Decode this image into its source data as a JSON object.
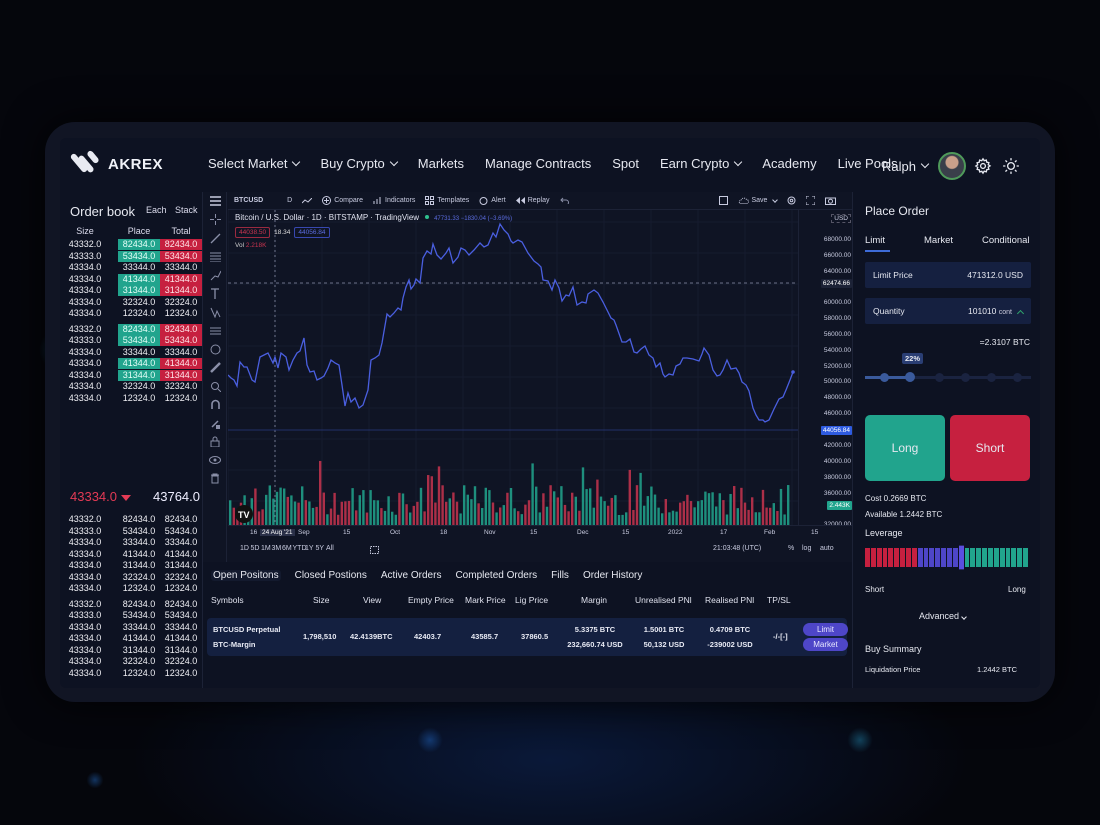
{
  "brand": {
    "name": "AKREX"
  },
  "nav": {
    "items": [
      {
        "label": "Select Market",
        "dropdown": true
      },
      {
        "label": "Buy Crypto",
        "dropdown": true
      },
      {
        "label": "Markets",
        "dropdown": false
      },
      {
        "label": "Manage Contracts",
        "dropdown": false
      },
      {
        "label": "Spot",
        "dropdown": false
      },
      {
        "label": "Earn Crypto",
        "dropdown": true
      },
      {
        "label": "Academy",
        "dropdown": false
      },
      {
        "label": "Live Pools",
        "dropdown": false
      }
    ],
    "user": {
      "name": "Ralph"
    },
    "icons": [
      "settings-icon",
      "theme-sun-icon"
    ]
  },
  "order_book": {
    "title": "Order book",
    "tabs": [
      "Each",
      "Stack"
    ],
    "columns": [
      "Size",
      "Place",
      "Total"
    ],
    "asks": [
      {
        "size": "43332.0",
        "place": "82434.0",
        "total": "82434.0",
        "hl": true
      },
      {
        "size": "43333.0",
        "place": "53434.0",
        "total": "53434.0",
        "hl": true
      },
      {
        "size": "43334.0",
        "place": "33344.0",
        "total": "33344.0",
        "hl": false
      },
      {
        "size": "43334.0",
        "place": "41344.0",
        "total": "41344.0",
        "hl": true
      },
      {
        "size": "43334.0",
        "place": "31344.0",
        "total": "31344.0",
        "hl": true
      },
      {
        "size": "43334.0",
        "place": "32324.0",
        "total": "32324.0",
        "hl": false
      },
      {
        "size": "43334.0",
        "place": "12324.0",
        "total": "12324.0",
        "hl": false
      },
      {
        "size": "43332.0",
        "place": "82434.0",
        "total": "82434.0",
        "hl": true
      },
      {
        "size": "43333.0",
        "place": "53434.0",
        "total": "53434.0",
        "hl": true
      },
      {
        "size": "43334.0",
        "place": "33344.0",
        "total": "33344.0",
        "hl": false
      },
      {
        "size": "43334.0",
        "place": "41344.0",
        "total": "41344.0",
        "hl": true
      },
      {
        "size": "43334.0",
        "place": "31344.0",
        "total": "31344.0",
        "hl": true
      },
      {
        "size": "43334.0",
        "place": "32324.0",
        "total": "32324.0",
        "hl": false
      },
      {
        "size": "43334.0",
        "place": "12324.0",
        "total": "12324.0",
        "hl": false
      }
    ],
    "last_price": "43334.0",
    "mark_price": "43764.0",
    "bids": [
      {
        "size": "43332.0",
        "place": "82434.0",
        "total": "82434.0"
      },
      {
        "size": "43333.0",
        "place": "53434.0",
        "total": "53434.0"
      },
      {
        "size": "43334.0",
        "place": "33344.0",
        "total": "33344.0"
      },
      {
        "size": "43334.0",
        "place": "41344.0",
        "total": "41344.0"
      },
      {
        "size": "43334.0",
        "place": "31344.0",
        "total": "31344.0"
      },
      {
        "size": "43334.0",
        "place": "32324.0",
        "total": "32324.0"
      },
      {
        "size": "43334.0",
        "place": "12324.0",
        "total": "12324.0"
      },
      {
        "size": "43332.0",
        "place": "82434.0",
        "total": "82434.0"
      },
      {
        "size": "43333.0",
        "place": "53434.0",
        "total": "53434.0"
      },
      {
        "size": "43334.0",
        "place": "33344.0",
        "total": "33344.0"
      },
      {
        "size": "43334.0",
        "place": "41344.0",
        "total": "41344.0"
      },
      {
        "size": "43334.0",
        "place": "31344.0",
        "total": "31344.0"
      },
      {
        "size": "43334.0",
        "place": "32324.0",
        "total": "32324.0"
      },
      {
        "size": "43334.0",
        "place": "12324.0",
        "total": "12324.0"
      }
    ]
  },
  "chart": {
    "toolbar": {
      "symbol": "BTCUSD",
      "interval": "D",
      "compare": "Compare",
      "indicators": "Indicators",
      "templates": "Templates",
      "alert": "Alert",
      "replay": "Replay",
      "save": "Save"
    },
    "legend": {
      "title": "Bitcoin / U.S. Dollar · 1D · BITSTAMP · TradingView",
      "quote": "47731.33  −1830.04 (−3.69%)",
      "bid": "44038.50",
      "spread": "18.34",
      "ask": "44056.84",
      "vol_label": "Vol",
      "vol_value": "2.218K"
    },
    "currency": "USD",
    "crosshair_price": "62474.66",
    "last_price_tag": "44056.84",
    "volume_tag": "2.443K",
    "y_ticks": [
      "68000.00",
      "66000.00",
      "64000.00",
      "60000.00",
      "58000.00",
      "56000.00",
      "54000.00",
      "52000.00",
      "50000.00",
      "48000.00",
      "46000.00",
      "42000.00",
      "40000.00",
      "38000.00",
      "36000.00",
      "32000.00"
    ],
    "x_ticks": [
      "16",
      "24 Aug '21",
      "Sep",
      "15",
      "Oct",
      "18",
      "Nov",
      "15",
      "Dec",
      "15",
      "2022",
      "17",
      "Feb",
      "15"
    ],
    "ranges": [
      "1D",
      "5D",
      "1M",
      "3M",
      "6M",
      "YTD",
      "1Y",
      "5Y",
      "All"
    ],
    "time": "21:03:48 (UTC)",
    "scale_opts": [
      "%",
      "log",
      "auto"
    ]
  },
  "chart_data": {
    "type": "line",
    "title": "Bitcoin / U.S. Dollar · 1D · BITSTAMP",
    "xlabel": "",
    "ylabel": "USD",
    "ylim": [
      32000,
      69000
    ],
    "x": [
      "Aug 2021",
      "Sep",
      "Oct",
      "Nov",
      "Dec",
      "Jan 2022",
      "Feb"
    ],
    "series": [
      {
        "name": "BTCUSD close",
        "values": [
          46000,
          47500,
          49500,
          43500,
          48000,
          44000,
          41000,
          54000,
          57500,
          62000,
          61000,
          66500,
          61500,
          59000,
          57500,
          50000,
          48500,
          49500,
          47000,
          47000,
          43500,
          42000,
          37000,
          38000,
          38500,
          44056
        ]
      }
    ],
    "volume_series": {
      "name": "Vol",
      "last": "2.443K"
    },
    "grid": true
  },
  "positions": {
    "tabs": [
      "Open Positons",
      "Closed Postions",
      "Active Orders",
      "Completed Orders",
      "Fills",
      "Order History"
    ],
    "columns": [
      "Symbols",
      "Size",
      "View",
      "Empty Price",
      "Mark Price",
      "Lig Price",
      "Margin",
      "Unrealised PNl",
      "Realised PNl",
      "TP/SL"
    ],
    "rows": [
      {
        "symbol": "BTCUSD Perpetual",
        "sub": "BTC-Margin",
        "size": "1,798,510",
        "view": "42.4139BTC",
        "empty_price": "42403.7",
        "mark_price": "43585.7",
        "lig_price": "37860.5",
        "margin_btc": "5.3375 BTC",
        "margin_usd": "232,660.74 USD",
        "unreal_btc": "1.5001 BTC",
        "unreal_usd": "50,132 USD",
        "real_btc": "0.4709 BTC",
        "real_usd": "-239002 USD",
        "tpsl": "-/-[-]",
        "btn_limit": "Limit",
        "btn_market": "Market"
      }
    ]
  },
  "place_order": {
    "title": "Place Order",
    "tabs": [
      "Limit",
      "Market",
      "Conditional"
    ],
    "limit_price_label": "Limit Price",
    "limit_price_value": "471312.0 USD",
    "quantity_label": "Quantity",
    "quantity_value": "101010",
    "quantity_unit": "cont",
    "conversion": "=2.3107 BTC",
    "slider_pct": "22%",
    "long_label": "Long",
    "short_label": "Short",
    "cost": "Cost 0.2669 BTC",
    "available": "Available 1.2442 BTC",
    "leverage_label": "Leverage",
    "leverage_short": "Short",
    "leverage_long": "Long",
    "advanced": "Advanced",
    "buy_summary": "Buy Summary",
    "liq_label": "Liquidation Price",
    "liq_value": "1.2442 BTC"
  },
  "colors": {
    "long": "#21a48d",
    "short": "#c6203f",
    "accent": "#4e46c8",
    "line": "#4a5fe0"
  }
}
